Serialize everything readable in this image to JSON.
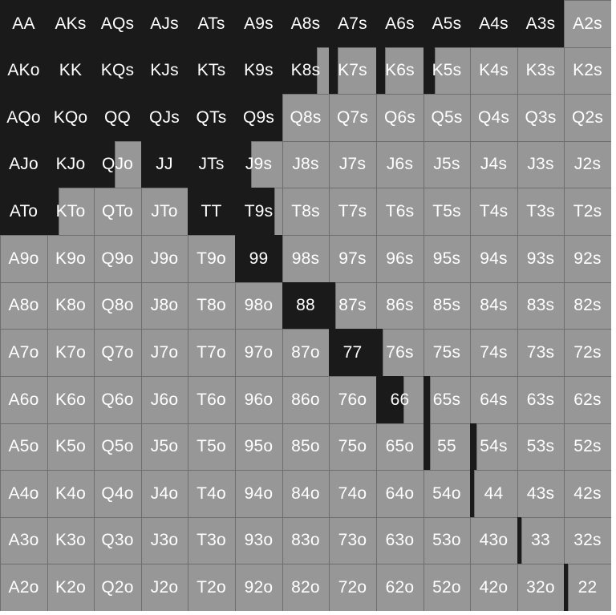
{
  "colors": {
    "in_range": "#1a1a1a",
    "out_of_range": "#979797",
    "text": "#ffffff"
  },
  "ranks": [
    "A",
    "K",
    "Q",
    "J",
    "T",
    "9",
    "8",
    "7",
    "6",
    "5",
    "4",
    "3",
    "2"
  ],
  "rows": [
    {
      "hands": [
        "AA",
        "AKs",
        "AQs",
        "AJs",
        "ATs",
        "A9s",
        "A8s",
        "A7s",
        "A6s",
        "A5s",
        "A4s",
        "A3s",
        "A2s"
      ],
      "in_range": [
        1,
        1,
        1,
        1,
        1,
        1,
        1,
        1,
        1,
        1,
        1,
        1,
        0
      ]
    },
    {
      "hands": [
        "AKo",
        "KK",
        "KQs",
        "KJs",
        "KTs",
        "K9s",
        "K8s",
        "K7s",
        "K6s",
        "K5s",
        "K4s",
        "K3s",
        "K2s"
      ],
      "in_range": [
        1,
        1,
        1,
        1,
        1,
        1,
        0.75,
        0.2,
        0.2,
        0.25,
        0,
        0,
        0
      ]
    },
    {
      "hands": [
        "AQo",
        "KQo",
        "QQ",
        "QJs",
        "QTs",
        "Q9s",
        "Q8s",
        "Q7s",
        "Q6s",
        "Q5s",
        "Q4s",
        "Q3s",
        "Q2s"
      ],
      "in_range": [
        1,
        1,
        1,
        1,
        1,
        1,
        0,
        0,
        0,
        0,
        0,
        0,
        0
      ]
    },
    {
      "hands": [
        "AJo",
        "KJo",
        "QJo",
        "JJ",
        "JTs",
        "J9s",
        "J8s",
        "J7s",
        "J6s",
        "J5s",
        "J4s",
        "J3s",
        "J2s"
      ],
      "in_range": [
        1,
        1,
        0.45,
        1,
        1,
        0.35,
        0,
        0,
        0,
        0,
        0,
        0,
        0
      ]
    },
    {
      "hands": [
        "ATo",
        "KTo",
        "QTo",
        "JTo",
        "TT",
        "T9s",
        "T8s",
        "T7s",
        "T6s",
        "T5s",
        "T4s",
        "T3s",
        "T2s"
      ],
      "in_range": [
        1,
        0.25,
        0,
        0,
        1,
        0.85,
        0,
        0,
        0,
        0,
        0,
        0,
        0
      ]
    },
    {
      "hands": [
        "A9o",
        "K9o",
        "Q9o",
        "J9o",
        "T9o",
        "99",
        "98s",
        "97s",
        "96s",
        "95s",
        "94s",
        "93s",
        "92s"
      ],
      "in_range": [
        0,
        0,
        0,
        0,
        0,
        1,
        0,
        0,
        0,
        0,
        0,
        0,
        0
      ]
    },
    {
      "hands": [
        "A8o",
        "K8o",
        "Q8o",
        "J8o",
        "T8o",
        "98o",
        "88",
        "87s",
        "86s",
        "85s",
        "84s",
        "83s",
        "82s"
      ],
      "in_range": [
        0,
        0,
        0,
        0,
        0,
        0,
        1,
        0.15,
        0,
        0,
        0,
        0,
        0
      ]
    },
    {
      "hands": [
        "A7o",
        "K7o",
        "Q7o",
        "J7o",
        "T7o",
        "97o",
        "87o",
        "77",
        "76s",
        "75s",
        "74s",
        "73s",
        "72s"
      ],
      "in_range": [
        0,
        0,
        0,
        0,
        0,
        0,
        0,
        1,
        0.15,
        0,
        0,
        0,
        0
      ]
    },
    {
      "hands": [
        "A6o",
        "K6o",
        "Q6o",
        "J6o",
        "T6o",
        "96o",
        "86o",
        "76o",
        "66",
        "65s",
        "64s",
        "63s",
        "62s"
      ],
      "in_range": [
        0,
        0,
        0,
        0,
        0,
        0,
        0,
        0,
        0.6,
        0.15,
        0,
        0,
        0
      ]
    },
    {
      "hands": [
        "A5o",
        "K5o",
        "Q5o",
        "J5o",
        "T5o",
        "95o",
        "85o",
        "75o",
        "65o",
        "55",
        "54s",
        "53s",
        "52s"
      ],
      "in_range": [
        0,
        0,
        0,
        0,
        0,
        0,
        0,
        0,
        0,
        0.15,
        0.15,
        0,
        0
      ]
    },
    {
      "hands": [
        "A4o",
        "K4o",
        "Q4o",
        "J4o",
        "T4o",
        "94o",
        "84o",
        "74o",
        "64o",
        "54o",
        "44",
        "43s",
        "42s"
      ],
      "in_range": [
        0,
        0,
        0,
        0,
        0,
        0,
        0,
        0,
        0,
        0,
        0.1,
        0,
        0
      ]
    },
    {
      "hands": [
        "A3o",
        "K3o",
        "Q3o",
        "J3o",
        "T3o",
        "93o",
        "83o",
        "73o",
        "63o",
        "53o",
        "43o",
        "33",
        "32s"
      ],
      "in_range": [
        0,
        0,
        0,
        0,
        0,
        0,
        0,
        0,
        0,
        0,
        0,
        0.1,
        0
      ]
    },
    {
      "hands": [
        "A2o",
        "K2o",
        "Q2o",
        "J2o",
        "T2o",
        "92o",
        "82o",
        "72o",
        "62o",
        "52o",
        "42o",
        "32o",
        "22"
      ],
      "in_range": [
        0,
        0,
        0,
        0,
        0,
        0,
        0,
        0,
        0,
        0,
        0,
        0,
        0.1
      ]
    }
  ]
}
